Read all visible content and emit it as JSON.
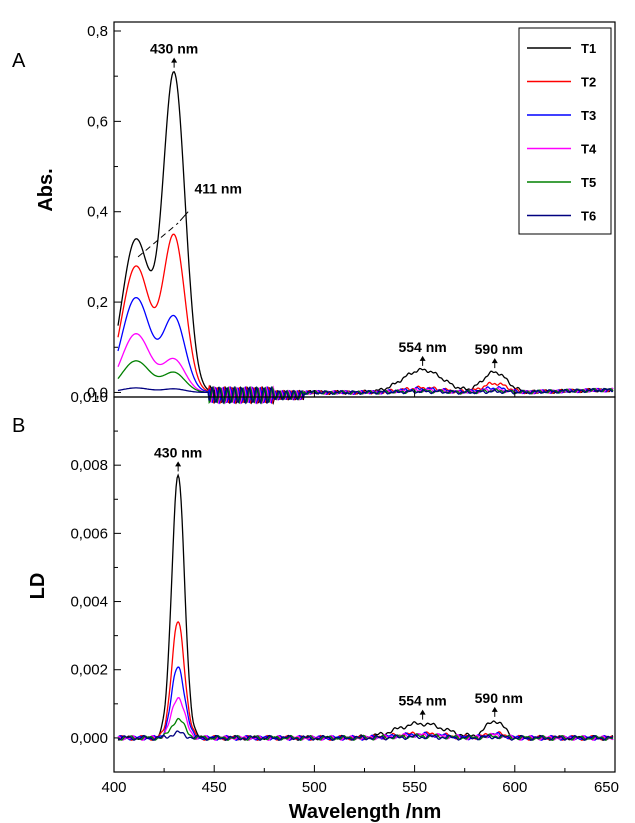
{
  "chart_data": [
    {
      "panel_label": "A",
      "type": "line",
      "ylabel": "Abs.",
      "xlim": [
        400,
        650
      ],
      "ylim": [
        -0.03,
        0.8
      ],
      "yticks": [
        0.0,
        0.2,
        0.4,
        0.6,
        0.8
      ],
      "ytick_labels": [
        "0,0",
        "0,2",
        "0,4",
        "0,6",
        "0,8"
      ],
      "legend": {
        "position": "top-right",
        "entries": [
          "T1",
          "T2",
          "T3",
          "T4",
          "T5",
          "T6"
        ]
      },
      "series": [
        {
          "name": "T1",
          "color": "#000000",
          "peaks": {
            "411": 0.34,
            "430": 0.71,
            "554": 0.05,
            "590": 0.045
          }
        },
        {
          "name": "T2",
          "color": "#ff0000",
          "peaks": {
            "411": 0.28,
            "430": 0.35,
            "554": 0.01,
            "590": 0.02
          }
        },
        {
          "name": "T3",
          "color": "#0000ff",
          "peaks": {
            "411": 0.21,
            "430": 0.17,
            "554": 0.008,
            "590": 0.01
          }
        },
        {
          "name": "T4",
          "color": "#ff00ff",
          "peaks": {
            "411": 0.13,
            "430": 0.075,
            "554": 0.005,
            "590": 0.006
          }
        },
        {
          "name": "T5",
          "color": "#008000",
          "peaks": {
            "411": 0.07,
            "430": 0.045,
            "554": 0.003,
            "590": 0.004
          }
        },
        {
          "name": "T6",
          "color": "#000080",
          "peaks": {
            "411": 0.01,
            "430": 0.008,
            "554": 0.002,
            "590": 0.002
          }
        }
      ],
      "annotations": [
        {
          "text": "430 nm",
          "x": 430,
          "y": 0.71
        },
        {
          "text": "411 nm",
          "x": 436,
          "y": 0.39
        },
        {
          "text": "554 nm",
          "x": 554,
          "y": 0.05
        },
        {
          "text": "590 nm",
          "x": 590,
          "y": 0.045
        }
      ]
    },
    {
      "panel_label": "B",
      "type": "line",
      "ylabel": "LD",
      "xlabel": "Wavelength /nm",
      "xlim": [
        400,
        650
      ],
      "ylim": [
        -0.001,
        0.01
      ],
      "xticks": [
        400,
        450,
        500,
        550,
        600,
        650
      ],
      "xtick_labels": [
        "400",
        "450",
        "500",
        "550",
        "600",
        "650"
      ],
      "yticks": [
        0.0,
        0.002,
        0.004,
        0.006,
        0.008,
        0.01
      ],
      "ytick_labels": [
        "0,000",
        "0,002",
        "0,004",
        "0,006",
        "0,008",
        "0,010"
      ],
      "series": [
        {
          "name": "T1",
          "color": "#000000",
          "peaks": {
            "432": 0.0077,
            "554": 0.00042,
            "590": 0.0005
          }
        },
        {
          "name": "T2",
          "color": "#ff0000",
          "peaks": {
            "432": 0.0034,
            "554": 0.00012,
            "590": 0.00013
          }
        },
        {
          "name": "T3",
          "color": "#0000ff",
          "peaks": {
            "432": 0.0021,
            "554": 0.0001,
            "590": 0.0001
          }
        },
        {
          "name": "T4",
          "color": "#ff00ff",
          "peaks": {
            "432": 0.0012,
            "554": 8e-05,
            "590": 8e-05
          }
        },
        {
          "name": "T5",
          "color": "#008000",
          "peaks": {
            "432": 0.00055,
            "554": 5e-05,
            "590": 5e-05
          }
        },
        {
          "name": "T6",
          "color": "#000080",
          "peaks": {
            "432": 0.00015,
            "554": 3e-05,
            "590": 3e-05
          }
        }
      ],
      "annotations": [
        {
          "text": "430 nm",
          "x": 432,
          "y": 0.0077
        },
        {
          "text": "554 nm",
          "x": 554,
          "y": 0.00042
        },
        {
          "text": "590 nm",
          "x": 590,
          "y": 0.0005
        }
      ]
    }
  ]
}
